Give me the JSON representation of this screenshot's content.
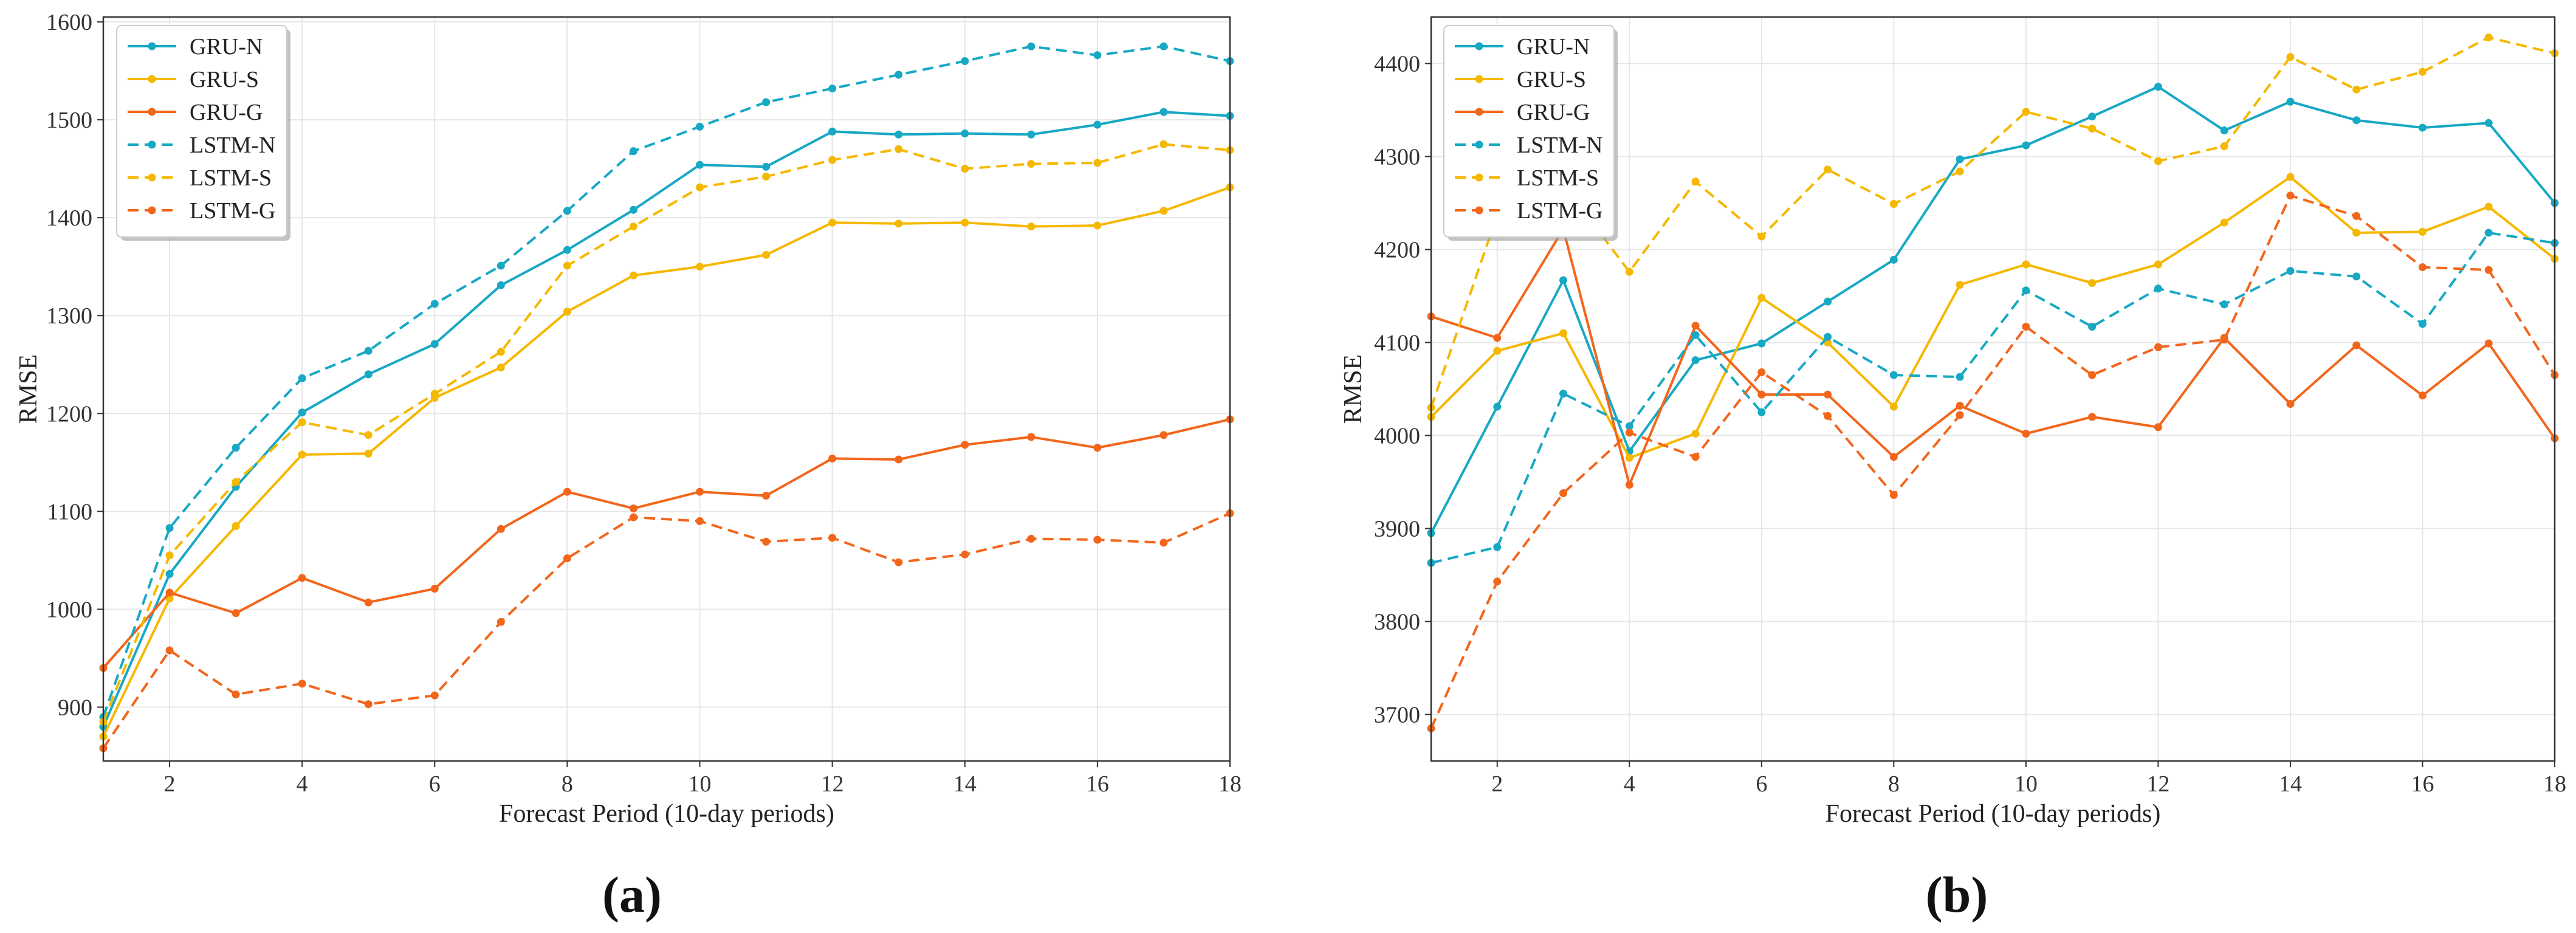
{
  "chart_data": [
    {
      "type": "line",
      "panel_label": "(a)",
      "xlabel": "Forecast Period (10-day periods)",
      "ylabel": "RMSE",
      "xlim": [
        1,
        18
      ],
      "ylim": [
        845,
        1605
      ],
      "xticks": [
        2,
        4,
        6,
        8,
        10,
        12,
        14,
        16,
        18
      ],
      "yticks": [
        900,
        1000,
        1100,
        1200,
        1300,
        1400,
        1500,
        1600
      ],
      "grid": true,
      "legend": "top-left",
      "x": [
        1,
        2,
        3,
        4,
        5,
        6,
        7,
        8,
        9,
        10,
        11,
        12,
        13,
        14,
        15,
        16,
        17,
        18
      ],
      "series": [
        {
          "name": "GRU-N",
          "color": "#17a8c4",
          "dashed": false,
          "values": [
            880,
            1036,
            1125,
            1201,
            1240,
            1271,
            1331,
            1367,
            1408,
            1454,
            1452,
            1488,
            1485,
            1486,
            1485,
            1495,
            1508,
            1504
          ]
        },
        {
          "name": "GRU-S",
          "color": "#f5b800",
          "dashed": false,
          "values": [
            870,
            1011,
            1085,
            1158,
            1159,
            1216,
            1247,
            1304,
            1341,
            1350,
            1362,
            1395,
            1394,
            1395,
            1391,
            1392,
            1407,
            1431
          ]
        },
        {
          "name": "GRU-G",
          "color": "#f2661c",
          "dashed": false,
          "values": [
            940,
            1017,
            996,
            1032,
            1007,
            1021,
            1082,
            1120,
            1103,
            1120,
            1116,
            1154,
            1153,
            1168,
            1176,
            1165,
            1178,
            1194
          ]
        },
        {
          "name": "LSTM-N",
          "color": "#17a8c4",
          "dashed": true,
          "values": [
            890,
            1083,
            1165,
            1236,
            1264,
            1312,
            1351,
            1407,
            1468,
            1493,
            1518,
            1532,
            1546,
            1560,
            1575,
            1566,
            1575,
            1560
          ]
        },
        {
          "name": "LSTM-S",
          "color": "#f5b800",
          "dashed": true,
          "values": [
            885,
            1055,
            1130,
            1191,
            1178,
            1220,
            1263,
            1351,
            1391,
            1431,
            1442,
            1459,
            1470,
            1450,
            1455,
            1456,
            1475,
            1469
          ]
        },
        {
          "name": "LSTM-G",
          "color": "#f2661c",
          "dashed": true,
          "values": [
            858,
            958,
            913,
            924,
            903,
            912,
            987,
            1052,
            1094,
            1090,
            1069,
            1073,
            1048,
            1056,
            1072,
            1071,
            1068,
            1098
          ]
        }
      ]
    },
    {
      "type": "line",
      "panel_label": "(b)",
      "xlabel": "Forecast Period (10-day periods)",
      "ylabel": "RMSE",
      "xlim": [
        1,
        18
      ],
      "ylim": [
        3650,
        4450
      ],
      "xticks": [
        2,
        4,
        6,
        8,
        10,
        12,
        14,
        16,
        18
      ],
      "yticks": [
        3700,
        3800,
        3900,
        4000,
        4100,
        4200,
        4300,
        4400
      ],
      "grid": true,
      "legend": "top-left",
      "x": [
        1,
        2,
        3,
        4,
        5,
        6,
        7,
        8,
        9,
        10,
        11,
        12,
        13,
        14,
        15,
        16,
        17,
        18
      ],
      "series": [
        {
          "name": "GRU-N",
          "color": "#17a8c4",
          "dashed": false,
          "values": [
            3895,
            4031,
            4167,
            3983,
            4081,
            4099,
            4144,
            4189,
            4297,
            4312,
            4343,
            4375,
            4328,
            4359,
            4339,
            4331,
            4336,
            4250
          ]
        },
        {
          "name": "GRU-S",
          "color": "#f5b800",
          "dashed": false,
          "values": [
            4020,
            4091,
            4110,
            3976,
            4002,
            4148,
            4100,
            4031,
            4162,
            4184,
            4164,
            4184,
            4229,
            4278,
            4218,
            4219,
            4246,
            4190
          ]
        },
        {
          "name": "GRU-G",
          "color": "#f2661c",
          "dashed": false,
          "values": [
            4128,
            4105,
            4222,
            3947,
            4118,
            4044,
            4044,
            3977,
            4032,
            4002,
            4020,
            4009,
            4105,
            4034,
            4097,
            4043,
            4099,
            3997
          ]
        },
        {
          "name": "LSTM-N",
          "color": "#17a8c4",
          "dashed": true,
          "values": [
            3863,
            3880,
            4045,
            4010,
            4108,
            4025,
            4106,
            4065,
            4063,
            4156,
            4117,
            4158,
            4141,
            4177,
            4171,
            4120,
            4218,
            4207
          ]
        },
        {
          "name": "LSTM-S",
          "color": "#f5b800",
          "dashed": true,
          "values": [
            4030,
            4237,
            4270,
            4176,
            4273,
            4214,
            4286,
            4249,
            4284,
            4348,
            4330,
            4295,
            4311,
            4407,
            4372,
            4391,
            4428,
            4411
          ]
        },
        {
          "name": "LSTM-G",
          "color": "#f2661c",
          "dashed": true,
          "values": [
            3685,
            3843,
            3938,
            4003,
            3977,
            4068,
            4021,
            3936,
            4022,
            4117,
            4065,
            4095,
            4103,
            4258,
            4236,
            4181,
            4178,
            4065
          ]
        }
      ]
    }
  ]
}
